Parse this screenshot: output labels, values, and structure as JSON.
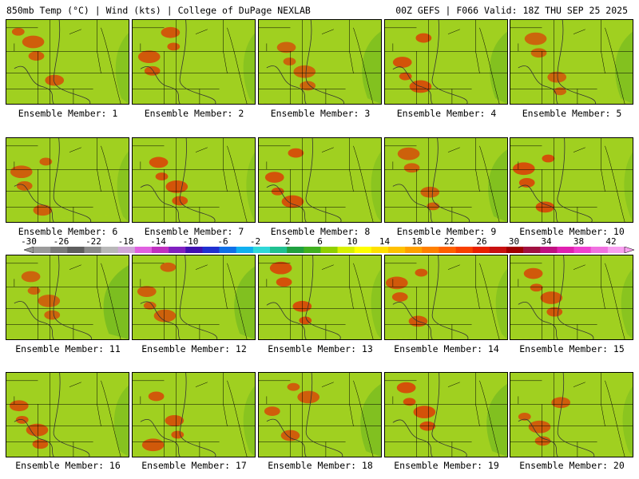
{
  "header": {
    "left": "850mb Temp (°C) | Wind (kts) | College of DuPage NEXLAB",
    "right": "00Z GEFS | F066 Valid: 18Z THU SEP 25 2025"
  },
  "panels": [
    {
      "label": "Ensemble Member: 1",
      "warmth": 0.7,
      "green_east": 0.35
    },
    {
      "label": "Ensemble Member: 2",
      "warmth": 0.75,
      "green_east": 0.3
    },
    {
      "label": "Ensemble Member: 3",
      "warmth": 0.6,
      "green_east": 0.55
    },
    {
      "label": "Ensemble Member: 4",
      "warmth": 0.8,
      "green_east": 0.5
    },
    {
      "label": "Ensemble Member: 5",
      "warmth": 0.6,
      "green_east": 0.5
    },
    {
      "label": "Ensemble Member: 6",
      "warmth": 0.65,
      "green_east": 0.3
    },
    {
      "label": "Ensemble Member: 7",
      "warmth": 0.8,
      "green_east": 0.2
    },
    {
      "label": "Ensemble Member: 8",
      "warmth": 0.8,
      "green_east": 0.25
    },
    {
      "label": "Ensemble Member: 9",
      "warmth": 0.65,
      "green_east": 0.55
    },
    {
      "label": "Ensemble Member: 10",
      "warmth": 0.85,
      "green_east": 0.2
    },
    {
      "label": "Ensemble Member: 11",
      "warmth": 0.6,
      "green_east": 0.75
    },
    {
      "label": "Ensemble Member: 12",
      "warmth": 0.65,
      "green_east": 0.6
    },
    {
      "label": "Ensemble Member: 13",
      "warmth": 0.85,
      "green_east": 0.25
    },
    {
      "label": "Ensemble Member: 14",
      "warmth": 0.75,
      "green_east": 0.3
    },
    {
      "label": "Ensemble Member: 15",
      "warmth": 0.75,
      "green_east": 0.3
    },
    {
      "label": "Ensemble Member: 16",
      "warmth": 0.75,
      "green_east": 0.4
    },
    {
      "label": "Ensemble Member: 17",
      "warmth": 0.75,
      "green_east": 0.3
    },
    {
      "label": "Ensemble Member: 18",
      "warmth": 0.7,
      "green_east": 0.6
    },
    {
      "label": "Ensemble Member: 19",
      "warmth": 0.85,
      "green_east": 0.6
    },
    {
      "label": "Ensemble Member: 20",
      "warmth": 0.7,
      "green_east": 0.25
    }
  ],
  "colorbar": {
    "labels": [
      "-30",
      "-26",
      "-22",
      "-18",
      "-14",
      "-10",
      "-6",
      "-2",
      "2",
      "6",
      "10",
      "14",
      "18",
      "22",
      "26",
      "30",
      "34",
      "38",
      "42"
    ],
    "colors": [
      "#9a9a9a",
      "#7a7a7a",
      "#5e5e5e",
      "#8a8a8a",
      "#b8b8b8",
      "#d0a8d8",
      "#e060e0",
      "#c030c0",
      "#8020c0",
      "#4010b0",
      "#2030d0",
      "#1070e8",
      "#10b0f0",
      "#30d8d8",
      "#20c090",
      "#20a040",
      "#40b020",
      "#90d000",
      "#d8f000",
      "#ffff00",
      "#ffe000",
      "#ffc000",
      "#ffa000",
      "#ff8000",
      "#ff6000",
      "#f84000",
      "#e82000",
      "#c81010",
      "#a00000",
      "#a01040",
      "#c01080",
      "#e020b0",
      "#f040d0",
      "#f070e0",
      "#f8a0f0"
    ]
  },
  "map_palette": [
    "#a0d020",
    "#c8e000",
    "#e8f000",
    "#ffff00",
    "#ffe000",
    "#ffc000",
    "#ffa000",
    "#ff8000",
    "#ff6000",
    "#f84000",
    "#e82000"
  ]
}
